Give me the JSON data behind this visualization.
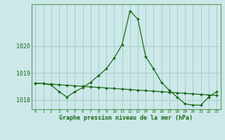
{
  "hours": [
    0,
    1,
    2,
    3,
    4,
    5,
    6,
    7,
    8,
    9,
    10,
    11,
    12,
    13,
    14,
    15,
    16,
    17,
    18,
    19,
    20,
    21,
    22,
    23
  ],
  "pressure_line1": [
    1018.6,
    1018.6,
    1018.55,
    1018.3,
    1018.1,
    1018.3,
    1018.45,
    1018.65,
    1018.9,
    1019.15,
    1019.55,
    1020.05,
    1021.3,
    1021.0,
    1019.6,
    1019.15,
    1018.65,
    1018.35,
    1018.1,
    1017.85,
    1017.8,
    1017.8,
    1018.1,
    1018.3
  ],
  "pressure_line2": [
    1018.62,
    1018.6,
    1018.58,
    1018.56,
    1018.54,
    1018.52,
    1018.5,
    1018.48,
    1018.46,
    1018.44,
    1018.42,
    1018.4,
    1018.38,
    1018.36,
    1018.34,
    1018.32,
    1018.3,
    1018.28,
    1018.26,
    1018.24,
    1018.22,
    1018.2,
    1018.18,
    1018.16
  ],
  "ylim": [
    1017.65,
    1021.55
  ],
  "yticks": [
    1018,
    1019,
    1020
  ],
  "background_color": "#cce8e8",
  "line_color": "#1a6b1a",
  "grid_color": "#aacccc",
  "spine_color": "#5a9a5a",
  "xlabel": "Graphe pression niveau de la mer (hPa)"
}
